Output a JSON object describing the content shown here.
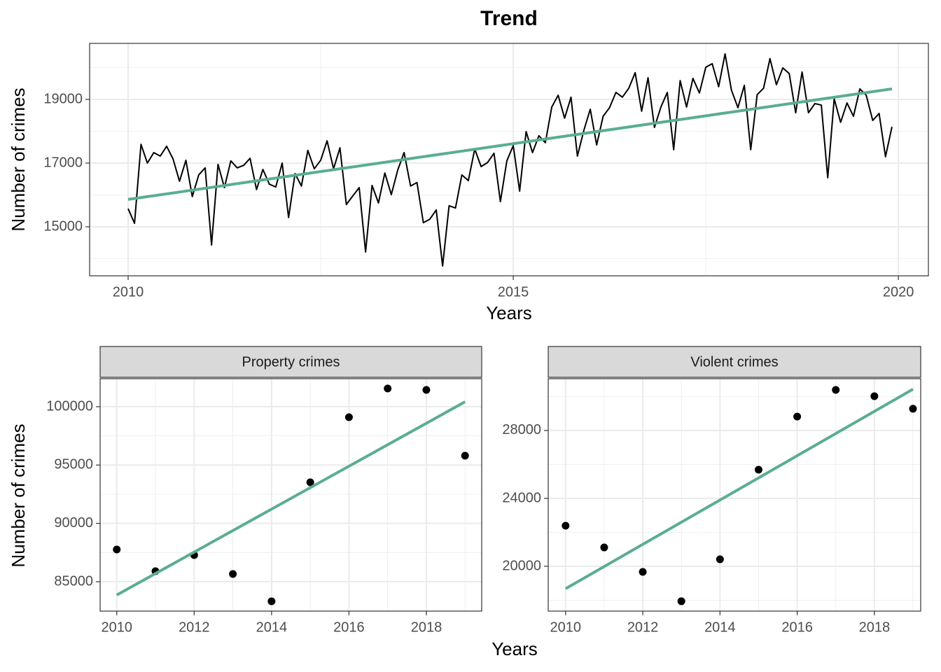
{
  "chart_data": [
    {
      "type": "line",
      "title": "Trend",
      "x_label": "Years",
      "y_label": "Number of crimes",
      "xlim": [
        2009.5,
        2020.39
      ],
      "ylim": [
        13462,
        20758
      ],
      "xticks": [
        2010,
        2015,
        2020
      ],
      "yticks": [
        15000,
        17000,
        19000
      ],
      "minor_xticks": [
        2012.5,
        2017.5
      ],
      "minor_yticks": [
        14000,
        16000,
        18000,
        20000
      ],
      "grid": true,
      "series": [
        {
          "type": "line",
          "color": "#000000",
          "x": [
            2010,
            2010.083,
            2010.167,
            2010.25,
            2010.333,
            2010.417,
            2010.5,
            2010.583,
            2010.667,
            2010.75,
            2010.833,
            2010.917,
            2011,
            2011.083,
            2011.167,
            2011.25,
            2011.333,
            2011.417,
            2011.5,
            2011.583,
            2011.667,
            2011.75,
            2011.833,
            2011.917,
            2012,
            2012.083,
            2012.167,
            2012.25,
            2012.333,
            2012.417,
            2012.5,
            2012.583,
            2012.667,
            2012.75,
            2012.833,
            2012.917,
            2013,
            2013.083,
            2013.167,
            2013.25,
            2013.333,
            2013.417,
            2013.5,
            2013.583,
            2013.667,
            2013.75,
            2013.833,
            2013.917,
            2014,
            2014.083,
            2014.167,
            2014.25,
            2014.333,
            2014.417,
            2014.5,
            2014.583,
            2014.667,
            2014.75,
            2014.833,
            2014.917,
            2015,
            2015.083,
            2015.167,
            2015.25,
            2015.333,
            2015.417,
            2015.5,
            2015.583,
            2015.667,
            2015.75,
            2015.833,
            2015.917,
            2016,
            2016.083,
            2016.167,
            2016.25,
            2016.333,
            2016.417,
            2016.5,
            2016.583,
            2016.667,
            2016.75,
            2016.833,
            2016.917,
            2017,
            2017.083,
            2017.167,
            2017.25,
            2017.333,
            2017.417,
            2017.5,
            2017.583,
            2017.667,
            2017.75,
            2017.833,
            2017.917,
            2018,
            2018.083,
            2018.167,
            2018.25,
            2018.333,
            2018.417,
            2018.5,
            2018.583,
            2018.667,
            2018.75,
            2018.833,
            2018.917,
            2019,
            2019.083,
            2019.167,
            2019.25,
            2019.333,
            2019.417,
            2019.5,
            2019.583,
            2019.667,
            2019.75,
            2019.833,
            2019.917
          ],
          "values": [
            15570,
            15110,
            17590,
            17000,
            17330,
            17220,
            17530,
            17130,
            16430,
            17090,
            15950,
            16630,
            16850,
            14430,
            16960,
            16230,
            17070,
            16850,
            16930,
            17150,
            16170,
            16800,
            16340,
            16250,
            17000,
            15290,
            16670,
            16280,
            17400,
            16820,
            17090,
            17700,
            16820,
            17480,
            15700,
            15970,
            16230,
            14210,
            16300,
            15750,
            16690,
            16010,
            16780,
            17330,
            16280,
            16390,
            15130,
            15240,
            15530,
            13770,
            15660,
            15590,
            16630,
            16450,
            17440,
            16890,
            17020,
            17310,
            15790,
            17070,
            17550,
            16120,
            17990,
            17330,
            17860,
            17640,
            18760,
            19130,
            18410,
            19070,
            17220,
            18030,
            18690,
            17570,
            18470,
            18740,
            19220,
            19070,
            19350,
            19840,
            18630,
            19680,
            18120,
            18760,
            19220,
            17420,
            19590,
            18760,
            19660,
            19200,
            20010,
            20120,
            19400,
            20430,
            19290,
            18740,
            19440,
            17420,
            19150,
            19350,
            20280,
            19460,
            19990,
            19810,
            18580,
            19860,
            18580,
            18870,
            18820,
            16540,
            19020,
            18280,
            18890,
            18470,
            19330,
            19130,
            18340,
            18560,
            17200,
            18140
          ]
        },
        {
          "type": "line",
          "color": "#5aae8f",
          "x": [
            2010,
            2019.917
          ],
          "values": [
            15860,
            19330
          ]
        }
      ]
    },
    {
      "type": "scatter",
      "facet": "Property crimes",
      "xlim": [
        2009.57,
        2019.43
      ],
      "ylim": [
        82480,
        102400
      ],
      "xticks": [
        2010,
        2012,
        2014,
        2016,
        2018
      ],
      "yticks": [
        85000,
        90000,
        95000,
        100000
      ],
      "minor_xticks": [
        2011,
        2013,
        2015,
        2017,
        2019
      ],
      "minor_yticks": [
        87500,
        92500,
        97500
      ],
      "grid": true,
      "series": [
        {
          "type": "scatter",
          "color": "#000000",
          "x": [
            2010,
            2011,
            2012,
            2013,
            2014,
            2015,
            2016,
            2017,
            2018,
            2019
          ],
          "values": [
            87760,
            85900,
            87280,
            85660,
            83320,
            93520,
            99100,
            101560,
            101440,
            95800
          ]
        },
        {
          "type": "line",
          "color": "#5aae8f",
          "x": [
            2010,
            2019
          ],
          "values": [
            83860,
            100420
          ]
        }
      ]
    },
    {
      "type": "scatter",
      "facet": "Violent crimes",
      "xlim": [
        2009.55,
        2019.2
      ],
      "ylim": [
        17360,
        31050
      ],
      "xticks": [
        2010,
        2012,
        2014,
        2016,
        2018
      ],
      "yticks": [
        20000,
        24000,
        28000
      ],
      "minor_xticks": [
        2011,
        2013,
        2015,
        2017,
        2019
      ],
      "minor_yticks": [
        18000,
        22000,
        26000,
        30000
      ],
      "grid": true,
      "series": [
        {
          "type": "scatter",
          "color": "#000000",
          "x": [
            2010,
            2011,
            2012,
            2013,
            2014,
            2015,
            2016,
            2017,
            2018,
            2019
          ],
          "values": [
            22390,
            21110,
            19670,
            17940,
            20410,
            25690,
            28820,
            30390,
            30020,
            29280
          ]
        },
        {
          "type": "line",
          "color": "#5aae8f",
          "x": [
            2010,
            2019
          ],
          "values": [
            18680,
            30430
          ]
        }
      ]
    }
  ],
  "facet_labels": {
    "x_label": "Years",
    "y_label": "Number of crimes"
  }
}
